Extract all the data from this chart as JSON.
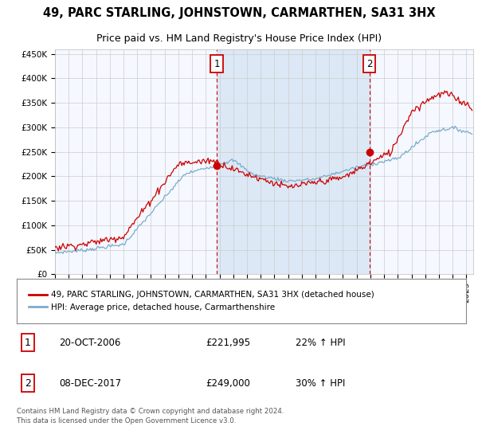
{
  "title": "49, PARC STARLING, JOHNSTOWN, CARMARTHEN, SA31 3HX",
  "subtitle": "Price paid vs. HM Land Registry's House Price Index (HPI)",
  "ylabel_ticks": [
    "£0",
    "£50K",
    "£100K",
    "£150K",
    "£200K",
    "£250K",
    "£300K",
    "£350K",
    "£400K",
    "£450K"
  ],
  "ytick_values": [
    0,
    50000,
    100000,
    150000,
    200000,
    250000,
    300000,
    350000,
    400000,
    450000
  ],
  "ylim": [
    0,
    460000
  ],
  "xlim_start": 1995.0,
  "xlim_end": 2025.5,
  "sale1_x": 2006.8,
  "sale1_y": 221995,
  "sale1_label": "1",
  "sale1_date": "20-OCT-2006",
  "sale1_price": "£221,995",
  "sale1_hpi": "22% ↑ HPI",
  "sale2_x": 2017.92,
  "sale2_y": 249000,
  "sale2_label": "2",
  "sale2_date": "08-DEC-2017",
  "sale2_price": "£249,000",
  "sale2_hpi": "30% ↑ HPI",
  "red_color": "#cc0000",
  "blue_color": "#7aaccc",
  "dashed_red": "#cc0000",
  "plot_bg": "#f5f8ff",
  "shade_color": "#dce8f5",
  "grid_color": "#cccccc",
  "legend_entry1": "49, PARC STARLING, JOHNSTOWN, CARMARTHEN, SA31 3HX (detached house)",
  "legend_entry2": "HPI: Average price, detached house, Carmarthenshire",
  "footer": "Contains HM Land Registry data © Crown copyright and database right 2024.\nThis data is licensed under the Open Government Licence v3.0.",
  "title_fontsize": 10.5,
  "subtitle_fontsize": 9,
  "tick_fontsize": 7.5,
  "legend_fontsize": 7.5,
  "table_fontsize": 8.5
}
